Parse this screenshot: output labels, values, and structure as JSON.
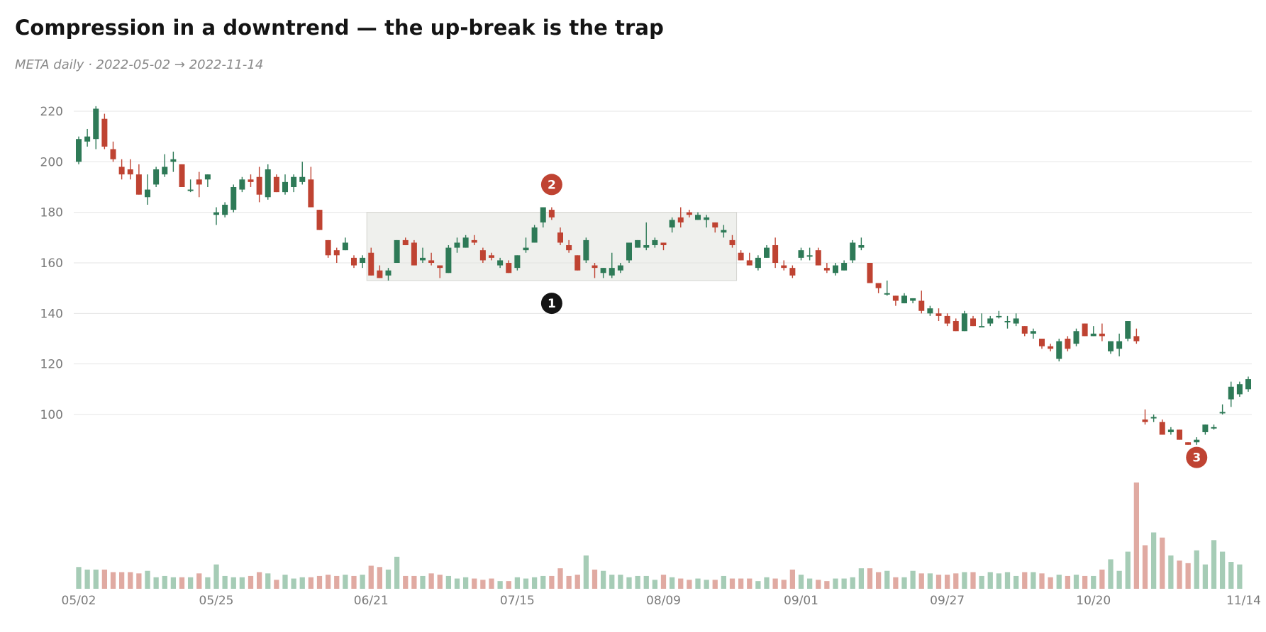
{
  "title": "Compression in a downtrend — the up-break is the trap",
  "subtitle": "META daily · 2022-05-02 → 2022-11-14",
  "chart_data": {
    "type": "candlestick",
    "ticker": "META",
    "interval": "daily",
    "y_ticks": [
      100,
      120,
      140,
      160,
      180,
      200,
      220
    ],
    "x_tick_labels": [
      "05/02",
      "05/25",
      "06/21",
      "07/15",
      "08/09",
      "09/01",
      "09/27",
      "10/20",
      "11/14"
    ],
    "x_tick_index": [
      0,
      16,
      34,
      51,
      68,
      84,
      101,
      118,
      135
    ],
    "grid": "horizontal",
    "colors": {
      "up": "#2e7a57",
      "down": "#bf4332",
      "up_volume": "#a6ccb6",
      "down_volume": "#e0aaa2",
      "shade": "#e2e3de",
      "marker_dark": "#141414",
      "marker_red": "#bf4332"
    },
    "compression_box": {
      "start_index": 34,
      "end_index": 76,
      "low": 153,
      "high": 180
    },
    "annotations": [
      {
        "label": "1",
        "index": 55,
        "price": 144,
        "style": "dark"
      },
      {
        "label": "2",
        "index": 55,
        "price": 191,
        "style": "red"
      },
      {
        "label": "3",
        "index": 130,
        "price": 83,
        "style": "red"
      }
    ],
    "ohlc": [
      [
        200,
        210,
        199,
        209
      ],
      [
        208,
        213,
        206,
        210
      ],
      [
        209,
        222,
        205,
        221
      ],
      [
        217,
        219,
        205,
        206
      ],
      [
        205,
        208,
        200,
        201
      ],
      [
        198,
        201,
        193,
        195
      ],
      [
        197,
        201,
        193,
        195
      ],
      [
        195,
        199,
        187,
        187
      ],
      [
        186,
        195,
        183,
        189
      ],
      [
        191,
        198,
        190,
        197
      ],
      [
        195,
        203,
        194,
        198
      ],
      [
        200,
        204,
        196,
        201
      ],
      [
        199,
        199,
        190,
        190
      ],
      [
        189,
        193,
        188,
        189
      ],
      [
        193,
        196,
        186,
        191
      ],
      [
        193,
        195,
        190,
        195
      ],
      [
        179,
        182,
        175,
        180
      ],
      [
        179,
        184,
        178,
        183
      ],
      [
        181,
        191,
        180,
        190
      ],
      [
        189,
        194,
        188,
        193
      ],
      [
        193,
        195,
        190,
        192
      ],
      [
        194,
        198,
        184,
        187
      ],
      [
        186,
        199,
        185,
        197
      ],
      [
        194,
        195,
        188,
        188
      ],
      [
        188,
        195,
        187,
        192
      ],
      [
        190,
        195,
        188,
        194
      ],
      [
        192,
        200,
        191,
        194
      ],
      [
        193,
        198,
        182,
        182
      ],
      [
        181,
        181,
        173,
        173
      ],
      [
        169,
        169,
        162,
        163
      ],
      [
        165,
        166,
        160,
        163
      ],
      [
        165,
        170,
        165,
        168
      ],
      [
        162,
        163,
        158,
        159
      ],
      [
        160,
        163,
        158,
        162
      ],
      [
        164,
        166,
        155,
        155
      ],
      [
        157,
        159,
        154,
        154
      ],
      [
        155,
        158,
        153,
        157
      ],
      [
        160,
        169,
        160,
        169
      ],
      [
        169,
        170,
        167,
        167
      ],
      [
        168,
        169,
        159,
        159
      ],
      [
        161,
        166,
        160,
        162
      ],
      [
        161,
        164,
        159,
        160
      ],
      [
        159,
        159,
        154,
        158
      ],
      [
        156,
        167,
        156,
        166
      ],
      [
        166,
        170,
        164,
        168
      ],
      [
        166,
        171,
        166,
        170
      ],
      [
        169,
        171,
        167,
        168
      ],
      [
        165,
        166,
        160,
        161
      ],
      [
        163,
        164,
        161,
        162
      ],
      [
        159,
        162,
        158,
        161
      ],
      [
        160,
        161,
        156,
        156
      ],
      [
        158,
        163,
        157,
        163
      ],
      [
        165,
        170,
        164,
        166
      ],
      [
        168,
        175,
        168,
        174
      ],
      [
        176,
        182,
        174,
        182
      ],
      [
        181,
        182,
        177,
        178
      ],
      [
        172,
        174,
        167,
        168
      ],
      [
        167,
        169,
        164,
        165
      ],
      [
        163,
        163,
        157,
        157
      ],
      [
        161,
        170,
        160,
        169
      ],
      [
        159,
        160,
        154,
        158
      ],
      [
        156,
        158,
        154,
        158
      ],
      [
        155,
        164,
        154,
        158
      ],
      [
        157,
        160,
        156,
        159
      ],
      [
        161,
        168,
        160,
        168
      ],
      [
        166,
        169,
        166,
        169
      ],
      [
        166,
        176,
        165,
        167
      ],
      [
        167,
        170,
        166,
        169
      ],
      [
        168,
        168,
        165,
        167
      ],
      [
        174,
        178,
        172,
        177
      ],
      [
        178,
        182,
        174,
        176
      ],
      [
        180,
        181,
        178,
        179
      ],
      [
        177,
        180,
        177,
        179
      ],
      [
        177,
        179,
        174,
        178
      ],
      [
        176,
        176,
        172,
        174
      ],
      [
        172,
        175,
        170,
        173
      ],
      [
        169,
        171,
        166,
        167
      ],
      [
        164,
        165,
        161,
        161
      ],
      [
        161,
        164,
        159,
        159
      ],
      [
        158,
        163,
        157,
        162
      ],
      [
        162,
        167,
        162,
        166
      ],
      [
        167,
        170,
        158,
        160
      ],
      [
        159,
        161,
        157,
        158
      ],
      [
        158,
        159,
        154,
        155
      ],
      [
        162,
        166,
        161,
        165
      ],
      [
        163,
        166,
        161,
        163
      ],
      [
        165,
        166,
        159,
        159
      ],
      [
        158,
        160,
        156,
        157
      ],
      [
        156,
        160,
        155,
        159
      ],
      [
        157,
        161,
        157,
        160
      ],
      [
        161,
        169,
        160,
        168
      ],
      [
        166,
        170,
        165,
        167
      ],
      [
        160,
        160,
        152,
        152
      ],
      [
        152,
        152,
        148,
        150
      ],
      [
        148,
        153,
        147,
        148
      ],
      [
        147,
        147,
        143,
        145
      ],
      [
        144,
        148,
        144,
        147
      ],
      [
        145,
        146,
        144,
        146
      ],
      [
        145,
        149,
        140,
        141
      ],
      [
        140,
        143,
        139,
        142
      ],
      [
        140,
        142,
        137,
        139
      ],
      [
        139,
        140,
        135,
        136
      ],
      [
        137,
        138,
        133,
        133
      ],
      [
        133,
        141,
        133,
        140
      ],
      [
        138,
        139,
        135,
        135
      ],
      [
        135,
        140,
        135,
        135
      ],
      [
        136,
        139,
        135,
        138
      ],
      [
        139,
        141,
        138,
        139
      ],
      [
        137,
        139,
        134,
        137
      ],
      [
        136,
        140,
        135,
        138
      ],
      [
        135,
        135,
        131,
        132
      ],
      [
        132,
        134,
        130,
        133
      ],
      [
        130,
        130,
        126,
        127
      ],
      [
        127,
        128,
        125,
        126
      ],
      [
        122,
        130,
        121,
        129
      ],
      [
        130,
        131,
        125,
        126
      ],
      [
        128,
        134,
        127,
        133
      ],
      [
        136,
        136,
        131,
        131
      ],
      [
        131,
        135,
        131,
        132
      ],
      [
        132,
        136,
        129,
        131
      ],
      [
        125,
        129,
        124,
        129
      ],
      [
        126,
        132,
        123,
        129
      ],
      [
        130,
        137,
        129,
        137
      ],
      [
        131,
        134,
        128,
        129
      ],
      [
        98,
        102,
        96,
        97
      ],
      [
        99,
        100,
        97,
        99
      ],
      [
        97,
        98,
        92,
        92
      ],
      [
        93,
        95,
        92,
        94
      ],
      [
        94,
        94,
        90,
        90
      ],
      [
        89,
        89,
        88,
        88
      ],
      [
        89,
        91,
        88,
        90
      ],
      [
        93,
        96,
        92,
        96
      ],
      [
        95,
        96,
        94,
        95
      ],
      [
        101,
        104,
        100,
        101
      ],
      [
        106,
        113,
        103,
        111
      ],
      [
        108,
        113,
        107,
        112
      ],
      [
        110,
        115,
        109,
        114
      ]
    ],
    "volume": [
      17,
      15,
      15,
      15,
      13,
      13,
      13,
      12,
      14,
      9,
      10,
      9,
      9,
      9,
      12,
      9,
      19,
      10,
      9,
      9,
      10,
      13,
      12,
      7,
      11,
      8,
      9,
      9,
      10,
      11,
      10,
      11,
      10,
      11,
      18,
      17,
      15,
      25,
      10,
      10,
      10,
      12,
      11,
      10,
      8,
      9,
      8,
      7,
      8,
      6,
      6,
      9,
      8,
      9,
      10,
      10,
      16,
      10,
      11,
      26,
      15,
      14,
      11,
      11,
      9,
      10,
      10,
      7,
      11,
      9,
      8,
      7,
      8,
      7,
      7,
      10,
      8,
      8,
      8,
      6,
      9,
      8,
      7,
      15,
      11,
      8,
      7,
      6,
      8,
      8,
      9,
      16,
      16,
      13,
      14,
      9,
      9,
      14,
      12,
      12,
      11,
      11,
      12,
      13,
      13,
      10,
      13,
      12,
      13,
      10,
      13,
      13,
      12,
      9,
      11,
      10,
      11,
      10,
      10,
      15,
      23,
      14,
      29,
      83,
      34,
      44,
      40,
      26,
      22,
      20,
      30,
      19,
      38,
      29,
      21,
      19
    ]
  }
}
